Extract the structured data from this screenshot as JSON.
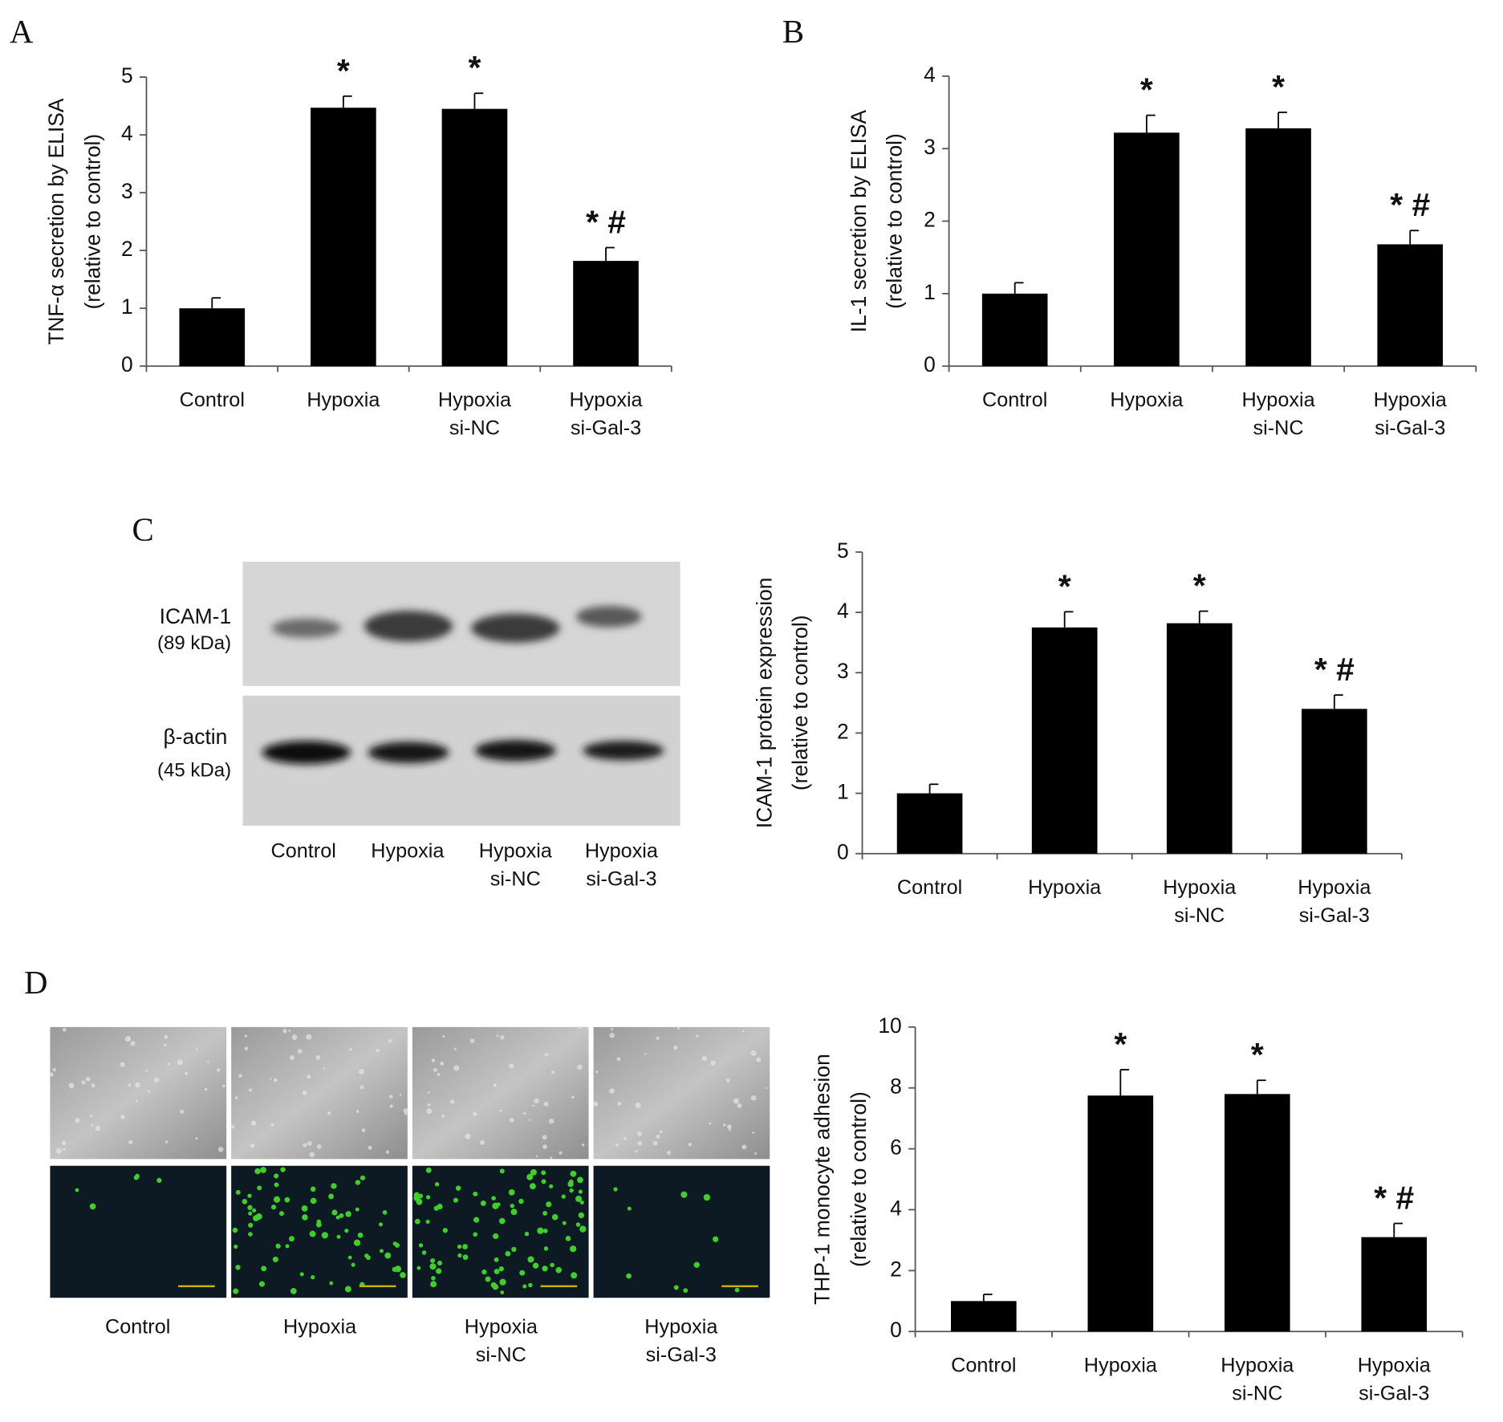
{
  "panel_labels": [
    "A",
    "B",
    "C",
    "D"
  ],
  "chart_data": [
    {
      "type": "bar",
      "ylabel": [
        "TNF-α secretion by ELISA",
        "(relative to control)"
      ],
      "categories": [
        "Control",
        "Hypoxia",
        "Hypoxia\nsi-NC",
        "Hypoxia\nsi-Gal-3"
      ],
      "values": [
        1.0,
        4.47,
        4.45,
        1.82
      ],
      "errors": [
        0.18,
        0.2,
        0.27,
        0.23
      ],
      "annotations": [
        null,
        "*",
        "*",
        "* #"
      ],
      "color": "#000000",
      "ylim": [
        0,
        5
      ],
      "yticks": [
        0,
        1,
        2,
        3,
        4,
        5
      ]
    },
    {
      "type": "bar",
      "ylabel": [
        "IL-1 secretion by ELISA",
        "(relative to control)"
      ],
      "categories": [
        "Control",
        "Hypoxia",
        "Hypoxia\nsi-NC",
        "Hypoxia\nsi-Gal-3"
      ],
      "values": [
        1.0,
        3.22,
        3.28,
        1.68
      ],
      "errors": [
        0.15,
        0.24,
        0.22,
        0.19
      ],
      "annotations": [
        null,
        "*",
        "*",
        "* #"
      ],
      "color": "#000000",
      "ylim": [
        0,
        4
      ],
      "yticks": [
        0,
        1,
        2,
        3,
        4
      ]
    },
    {
      "type": "bar",
      "ylabel": [
        "ICAM-1 protein expression",
        "(relative to control)"
      ],
      "categories": [
        "Control",
        "Hypoxia",
        "Hypoxia\nsi-NC",
        "Hypoxia\nsi-Gal-3"
      ],
      "values": [
        1.0,
        3.75,
        3.82,
        2.4
      ],
      "errors": [
        0.15,
        0.26,
        0.2,
        0.23
      ],
      "annotations": [
        null,
        "*",
        "*",
        "* #"
      ],
      "color": "#000000",
      "ylim": [
        0,
        5
      ],
      "yticks": [
        0,
        1,
        2,
        3,
        4,
        5
      ]
    },
    {
      "type": "bar",
      "ylabel": [
        "THP-1 monocyte adhesion",
        "(relative to control)"
      ],
      "categories": [
        "Control",
        "Hypoxia",
        "Hypoxia\nsi-NC",
        "Hypoxia\nsi-Gal-3"
      ],
      "values": [
        1.0,
        7.75,
        7.8,
        3.1
      ],
      "errors": [
        0.22,
        0.85,
        0.45,
        0.45
      ],
      "annotations": [
        null,
        "*",
        "*",
        "* #"
      ],
      "color": "#000000",
      "ylim": [
        0,
        10
      ],
      "yticks": [
        0,
        2,
        4,
        6,
        8,
        10
      ]
    }
  ],
  "blot": {
    "rows": [
      {
        "label": "ICAM-1",
        "size": "(89 kDa)"
      },
      {
        "label": "β-actin",
        "size": "(45 kDa)"
      }
    ],
    "lanes": [
      "Control",
      "Hypoxia",
      "Hypoxia\nsi-NC",
      "Hypoxia\nsi-Gal-3"
    ]
  },
  "micrographs": {
    "lanes": [
      "Control",
      "Hypoxia",
      "Hypoxia\nsi-NC",
      "Hypoxia\nsi-Gal-3"
    ]
  }
}
